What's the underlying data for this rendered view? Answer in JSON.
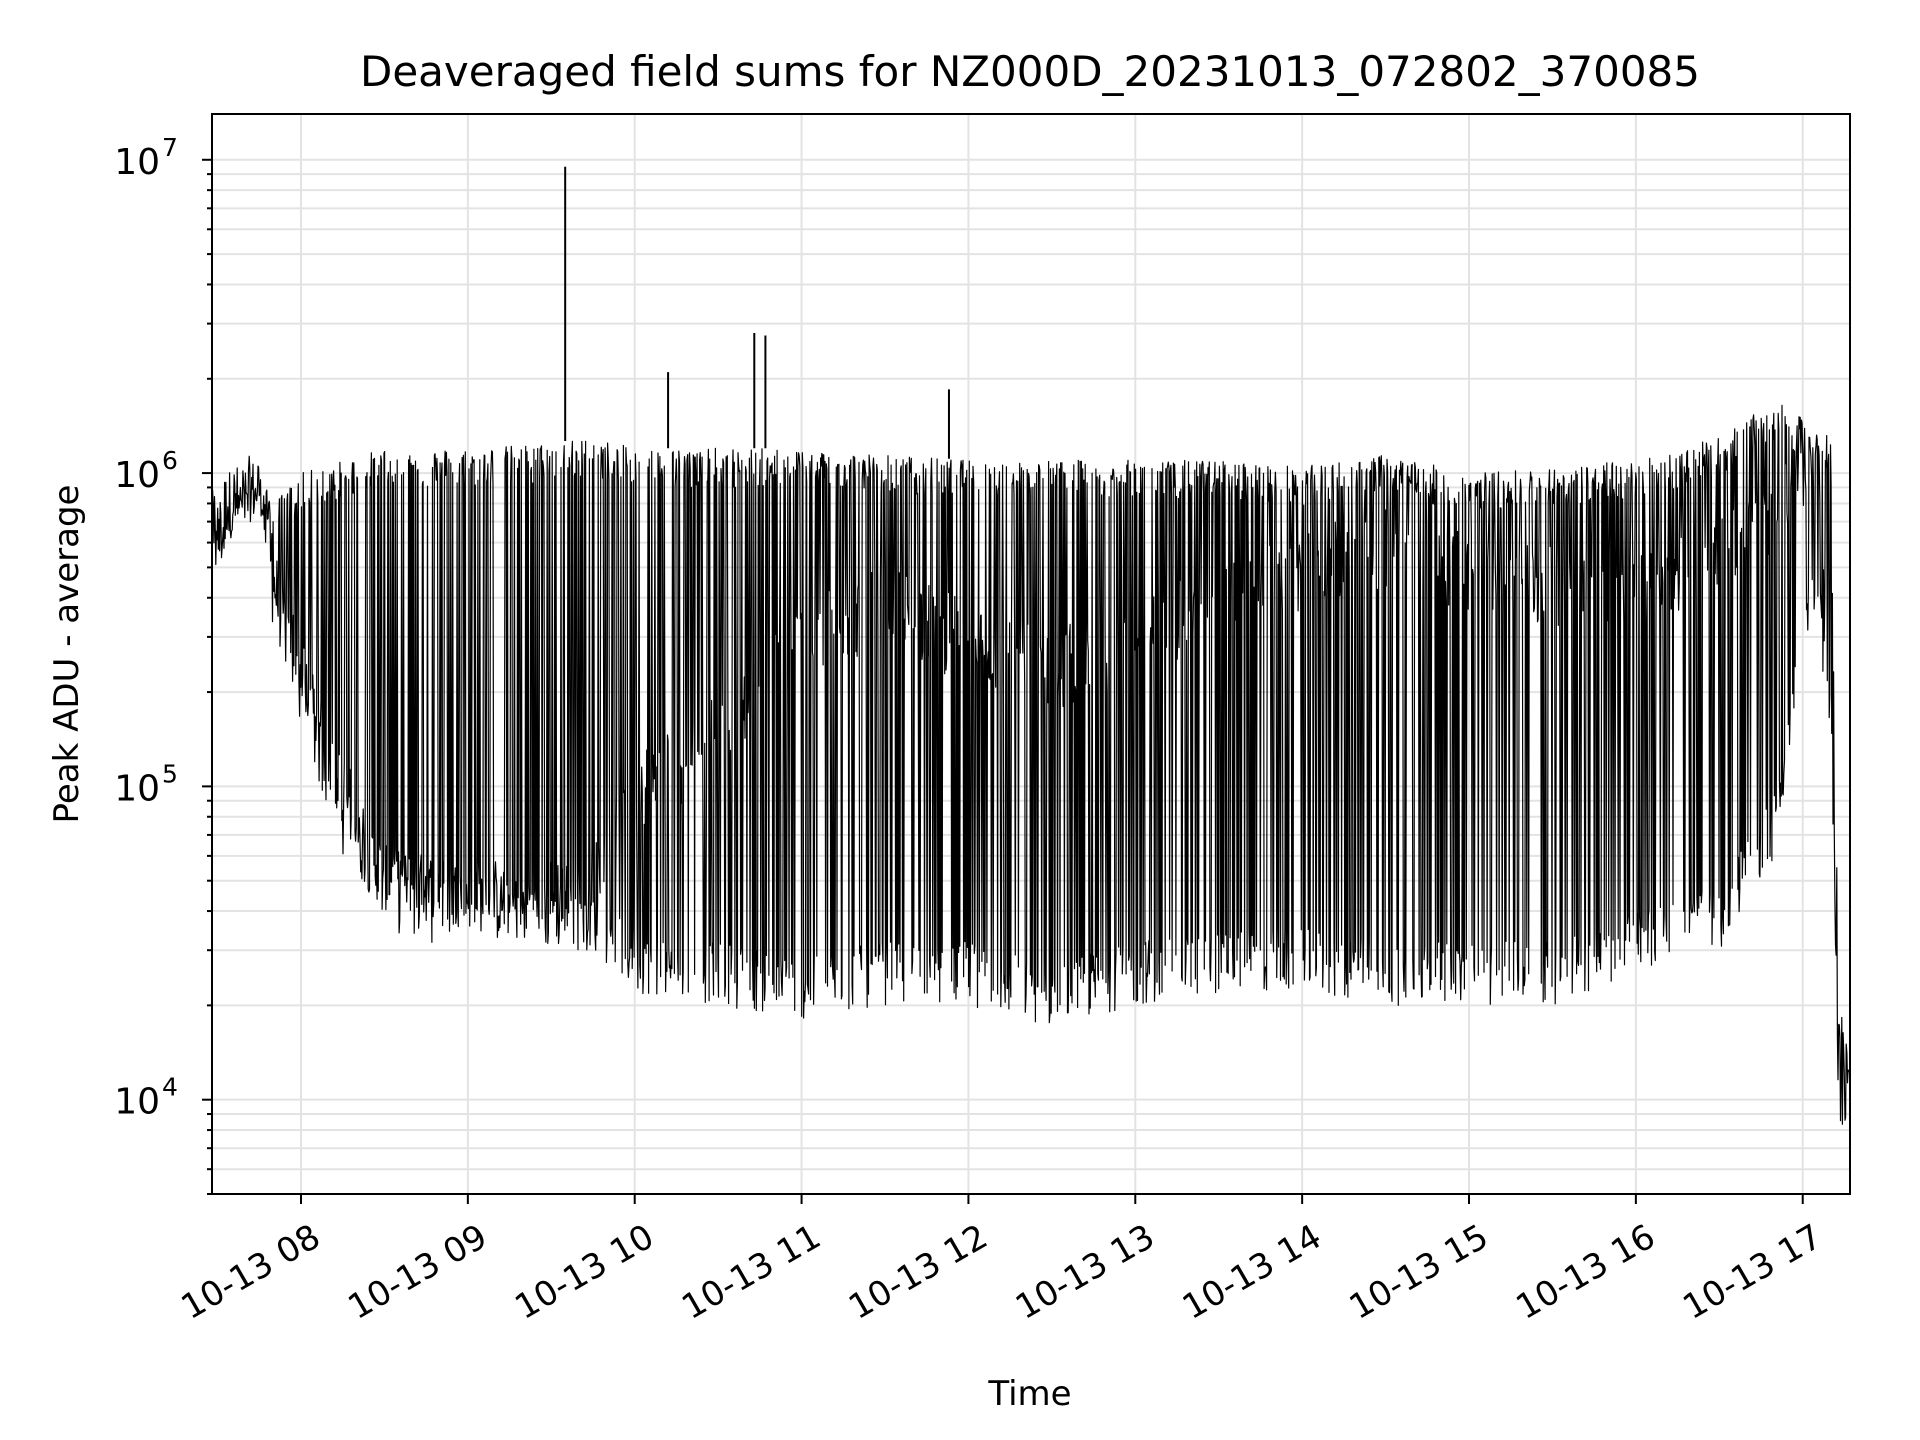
{
  "chart_data": {
    "type": "line",
    "title": "Deaveraged field sums for NZ000D_20231013_072802_370085",
    "xlabel": "Time",
    "ylabel": "Peak ADU - average",
    "yscale": "log",
    "ylim": [
      5000,
      14000000
    ],
    "xlim": [
      "2023-10-13 07:28",
      "2023-10-13 17:17"
    ],
    "grid": true,
    "line_color": "#000000",
    "x_tick_labels": [
      "10-13 08",
      "10-13 09",
      "10-13 10",
      "10-13 11",
      "10-13 12",
      "10-13 13",
      "10-13 14",
      "10-13 15",
      "10-13 16",
      "10-13 17"
    ],
    "y_tick_labels": [
      {
        "base": "10",
        "exp": "4"
      },
      {
        "base": "10",
        "exp": "5"
      },
      {
        "base": "10",
        "exp": "6"
      },
      {
        "base": "10",
        "exp": "7"
      }
    ],
    "series": [
      {
        "x": [
          "2023-10-13 07:28",
          "2023-10-13 07:35",
          "2023-10-13 07:45",
          "2023-10-13 07:50",
          "2023-10-13 08:00",
          "2023-10-13 08:15",
          "2023-10-13 08:30",
          "2023-10-13 08:45",
          "2023-10-13 09:00",
          "2023-10-13 09:30",
          "2023-10-13 09:45",
          "2023-10-13 10:00",
          "2023-10-13 10:30",
          "2023-10-13 11:00",
          "2023-10-13 11:30",
          "2023-10-13 12:00",
          "2023-10-13 12:30",
          "2023-10-13 13:00",
          "2023-10-13 13:30",
          "2023-10-13 14:00",
          "2023-10-13 14:30",
          "2023-10-13 15:00",
          "2023-10-13 15:30",
          "2023-10-13 16:00",
          "2023-10-13 16:30",
          "2023-10-13 16:50",
          "2023-10-13 17:05",
          "2023-10-13 17:10",
          "2023-10-13 17:13",
          "2023-10-13 17:17"
        ],
        "baseline": [
          600000,
          750000,
          950000,
          450000,
          250000,
          100000,
          50000,
          45000,
          45000,
          45000,
          50000,
          100000,
          150000,
          300000,
          400000,
          300000,
          250000,
          300000,
          400000,
          500000,
          600000,
          500000,
          450000,
          450000,
          550000,
          800000,
          1200000,
          200000,
          12000,
          12000
        ],
        "upper": [
          600000,
          800000,
          1000000,
          800000,
          1000000,
          1100000,
          1200000,
          1200000,
          1200000,
          1250000,
          1300000,
          1200000,
          1200000,
          1200000,
          1150000,
          1100000,
          1100000,
          1100000,
          1100000,
          1050000,
          1150000,
          1000000,
          1050000,
          1100000,
          1300000,
          1700000,
          1400000,
          1300000,
          20000,
          15000
        ],
        "lower": [
          550000,
          650000,
          700000,
          350000,
          150000,
          60000,
          40000,
          38000,
          35000,
          30000,
          30000,
          22000,
          20000,
          18000,
          20000,
          20000,
          17000,
          20000,
          22000,
          22000,
          20000,
          20000,
          20000,
          25000,
          30000,
          60000,
          400000,
          100000,
          8000,
          8000
        ]
      }
    ],
    "annotations": [
      {
        "x": "2023-10-13 09:35",
        "y": 9500000,
        "note": "spike"
      },
      {
        "x": "2023-10-13 10:43",
        "y": 2800000,
        "note": "spike"
      },
      {
        "x": "2023-10-13 11:53",
        "y": 1850000,
        "note": "spike"
      },
      {
        "x": "2023-10-13 10:12",
        "y": 2100000,
        "note": "spike"
      },
      {
        "x": "2023-10-13 10:47",
        "y": 2750000,
        "note": "spike"
      }
    ]
  }
}
